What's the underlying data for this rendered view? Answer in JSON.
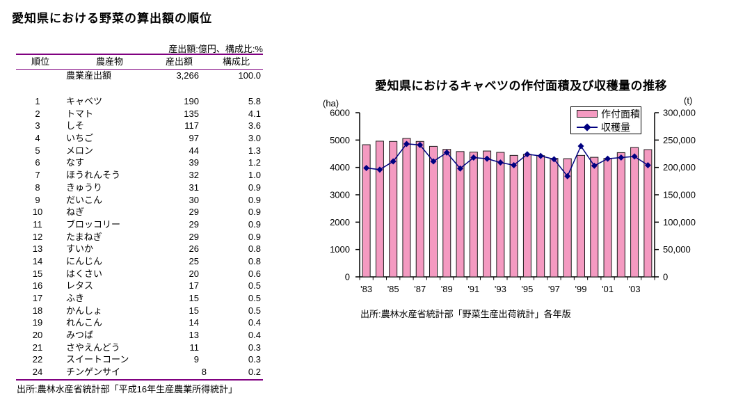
{
  "table_section": {
    "title": "愛知県における野菜の算出額の順位",
    "unit_note": "産出額:億円、構成比:%",
    "columns": {
      "rank": "順位",
      "product": "農産物",
      "value": "産出額",
      "ratio": "構成比"
    },
    "summary_row": {
      "label": "農業産出額",
      "value": "3,266",
      "ratio": "100.0"
    },
    "rows": [
      {
        "rank": "1",
        "name": "キャベツ",
        "value": "190",
        "ratio": "5.8"
      },
      {
        "rank": "2",
        "name": "トマト",
        "value": "135",
        "ratio": "4.1"
      },
      {
        "rank": "3",
        "name": "しそ",
        "value": "117",
        "ratio": "3.6"
      },
      {
        "rank": "4",
        "name": "いちご",
        "value": "97",
        "ratio": "3.0"
      },
      {
        "rank": "5",
        "name": "メロン",
        "value": "44",
        "ratio": "1.3"
      },
      {
        "rank": "6",
        "name": "なす",
        "value": "39",
        "ratio": "1.2"
      },
      {
        "rank": "7",
        "name": "ほうれんそう",
        "value": "32",
        "ratio": "1.0"
      },
      {
        "rank": "8",
        "name": "きゅうり",
        "value": "31",
        "ratio": "0.9"
      },
      {
        "rank": "9",
        "name": "だいこん",
        "value": "30",
        "ratio": "0.9"
      },
      {
        "rank": "10",
        "name": "ねぎ",
        "value": "29",
        "ratio": "0.9"
      },
      {
        "rank": "11",
        "name": "ブロッコリー",
        "value": "29",
        "ratio": "0.9"
      },
      {
        "rank": "12",
        "name": "たまねぎ",
        "value": "29",
        "ratio": "0.9"
      },
      {
        "rank": "13",
        "name": "すいか",
        "value": "26",
        "ratio": "0.8"
      },
      {
        "rank": "14",
        "name": "にんじん",
        "value": "25",
        "ratio": "0.8"
      },
      {
        "rank": "15",
        "name": "はくさい",
        "value": "20",
        "ratio": "0.6"
      },
      {
        "rank": "16",
        "name": "レタス",
        "value": "17",
        "ratio": "0.5"
      },
      {
        "rank": "17",
        "name": "ふき",
        "value": "15",
        "ratio": "0.5"
      },
      {
        "rank": "18",
        "name": "かんしょ",
        "value": "15",
        "ratio": "0.5"
      },
      {
        "rank": "19",
        "name": "れんこん",
        "value": "14",
        "ratio": "0.4"
      },
      {
        "rank": "20",
        "name": "みつば",
        "value": "13",
        "ratio": "0.4"
      },
      {
        "rank": "21",
        "name": "さやえんどう",
        "value": "11",
        "ratio": "0.3"
      },
      {
        "rank": "22",
        "name": "スイートコーン",
        "value": "9",
        "ratio": "0.3"
      },
      {
        "rank": "24",
        "name": "チンゲンサイ",
        "value": "8",
        "ratio": "0.2"
      }
    ],
    "source": "出所:農林水産省統計部「平成16年生産農業所得統計」"
  },
  "chart_section": {
    "title": "愛知県におけるキャベツの作付面積及び収穫量の推移",
    "left_axis_unit": "(ha)",
    "right_axis_unit": "(t)",
    "source": "出所:農林水産省統計部「野菜生産出荷統計」各年版"
  },
  "chart_data": {
    "type": "combo-bar-line",
    "x_years": [
      1983,
      1984,
      1985,
      1986,
      1987,
      1988,
      1989,
      1990,
      1991,
      1992,
      1993,
      1994,
      1995,
      1996,
      1997,
      1998,
      1999,
      2000,
      2001,
      2002,
      2003,
      2004
    ],
    "x_tick_labels": [
      "'83",
      "'85",
      "'87",
      "'89",
      "'91",
      "'93",
      "'95",
      "'97",
      "'99",
      "'01",
      "'03"
    ],
    "series": [
      {
        "name": "作付面積",
        "type": "bar",
        "axis": "left",
        "unit": "ha",
        "values": [
          4830,
          4960,
          4950,
          5060,
          4950,
          4770,
          4660,
          4580,
          4560,
          4600,
          4550,
          4440,
          4480,
          4430,
          4330,
          4320,
          4440,
          4370,
          4330,
          4540,
          4730,
          4650
        ]
      },
      {
        "name": "収穫量",
        "type": "line",
        "axis": "right",
        "unit": "t",
        "values": [
          199000,
          196000,
          211000,
          243000,
          241000,
          211000,
          227000,
          198000,
          218000,
          216000,
          209000,
          204000,
          224000,
          221000,
          215000,
          184000,
          239000,
          203000,
          216000,
          218000,
          220000,
          204000
        ]
      }
    ],
    "left_axis": {
      "min": 0,
      "max": 6000,
      "step": 1000,
      "ticks": [
        "0",
        "1000",
        "2000",
        "3000",
        "4000",
        "5000",
        "6000"
      ]
    },
    "right_axis": {
      "min": 0,
      "max": 300000,
      "step": 50000,
      "ticks": [
        "0",
        "50,000",
        "100,000",
        "150,000",
        "200,000",
        "250,000",
        "300,000"
      ]
    },
    "legend_position": "top-right",
    "grid": false
  },
  "colors": {
    "rule_purple": "#800080",
    "bar_fill": "#F49AC1",
    "bar_border": "#1A1A1A",
    "line": "#000080",
    "marker": "#000080",
    "axis": "#000000",
    "text": "#000000",
    "legend_border": "#000000",
    "background": "#FFFFFF"
  }
}
